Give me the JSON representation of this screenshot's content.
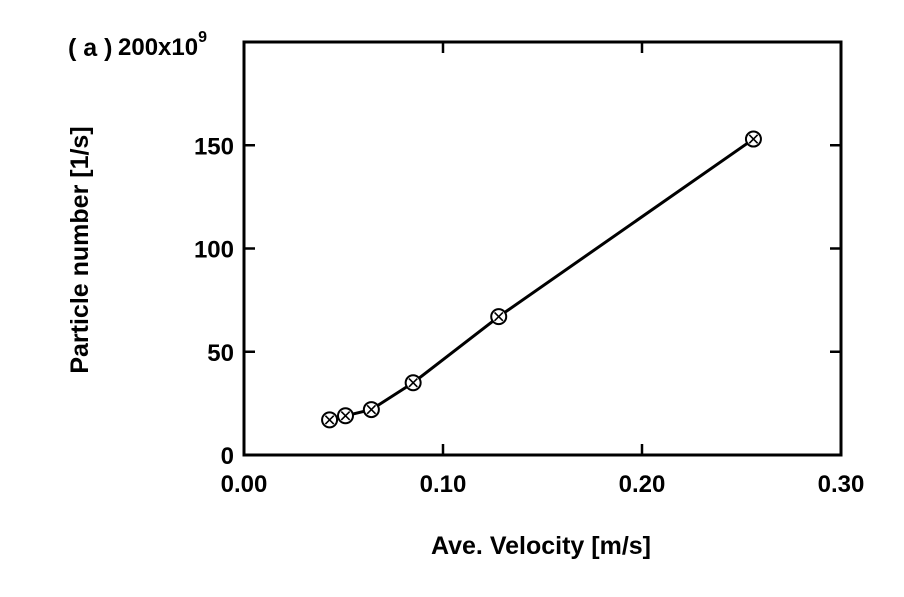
{
  "chart_data": {
    "type": "line",
    "panel_label": "( a )",
    "xlabel": "Ave. Velocity  [m/s]",
    "ylabel": "Particle number  [1/s]",
    "y_scale_label": {
      "base": "200x10",
      "exponent": "9"
    },
    "xlim": [
      0,
      0.3
    ],
    "ylim": [
      0,
      200
    ],
    "x_ticks": [
      0.0,
      0.1,
      0.2,
      0.3
    ],
    "x_tick_labels": [
      "0.00",
      "0.10",
      "0.20",
      "0.30"
    ],
    "y_ticks": [
      0,
      50,
      100,
      150
    ],
    "y_tick_labels": [
      "0",
      "50",
      "100",
      "150"
    ],
    "grid": false,
    "series": [
      {
        "marker": "circle-x",
        "color": "#000000",
        "x": [
          0.043,
          0.051,
          0.064,
          0.085,
          0.128,
          0.256
        ],
        "y": [
          17,
          19,
          22,
          35,
          67,
          153
        ]
      }
    ]
  }
}
